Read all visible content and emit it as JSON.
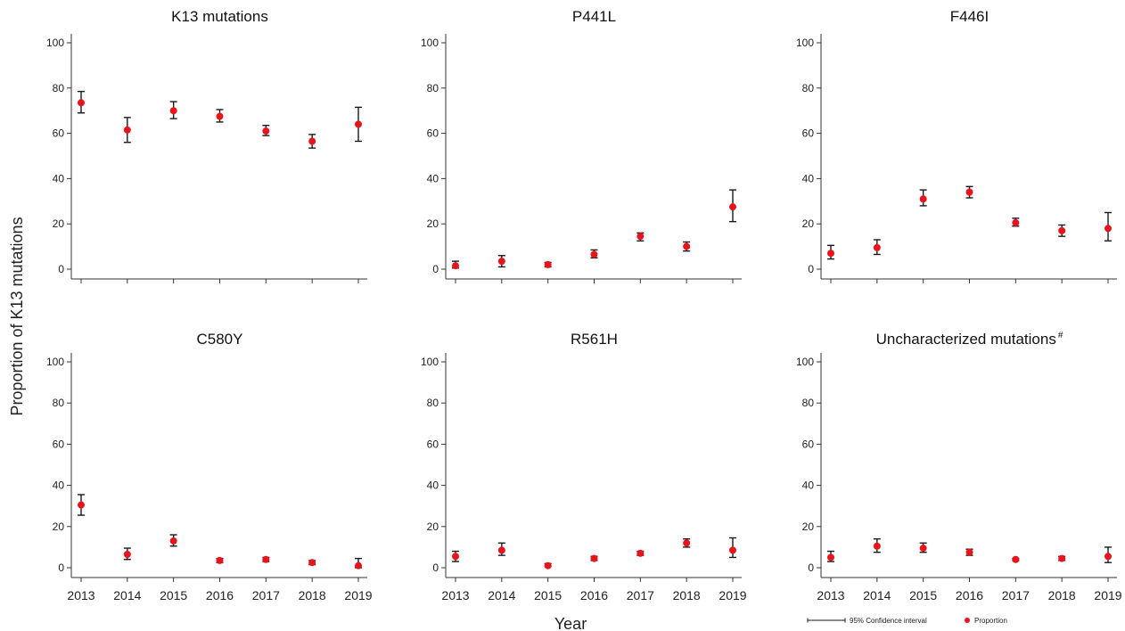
{
  "figure": {
    "ylabel": "Proportion of K13 mutations",
    "xlabel": "Year",
    "legend": {
      "ci_label": "95% Confidence interval",
      "point_label": "Proportion",
      "placement": "bottom-right"
    },
    "colors": {
      "point": "#e8141c",
      "errorbar": "#1a1a1a",
      "axis": "#333333"
    }
  },
  "chart_data": [
    {
      "type": "scatter",
      "title": "K13 mutations",
      "title_sup": "",
      "x": [
        "2013",
        "2014",
        "2015",
        "2016",
        "2017",
        "2018",
        "2019"
      ],
      "series": [
        {
          "values": [
            73.5,
            61.5,
            70.0,
            67.5,
            61.0,
            56.5,
            64.0
          ],
          "ci_low": [
            69.0,
            56.0,
            66.5,
            65.0,
            59.0,
            53.5,
            56.5
          ],
          "ci_high": [
            78.5,
            67.0,
            74.0,
            70.5,
            63.5,
            59.5,
            71.5
          ]
        }
      ],
      "ylim": [
        0,
        100
      ],
      "yticks": [
        0,
        20,
        40,
        60,
        80,
        100
      ]
    },
    {
      "type": "scatter",
      "title": "P441L",
      "title_sup": "",
      "x": [
        "2013",
        "2014",
        "2015",
        "2016",
        "2017",
        "2018",
        "2019"
      ],
      "series": [
        {
          "values": [
            1.5,
            3.5,
            2.0,
            6.5,
            14.5,
            10.0,
            27.5
          ],
          "ci_low": [
            0.5,
            1.0,
            1.0,
            5.0,
            12.5,
            8.0,
            21.0
          ],
          "ci_high": [
            3.5,
            6.0,
            3.0,
            8.5,
            16.0,
            12.0,
            35.0
          ]
        }
      ],
      "ylim": [
        0,
        100
      ],
      "yticks": [
        0,
        20,
        40,
        60,
        80,
        100
      ]
    },
    {
      "type": "scatter",
      "title": "F446I",
      "title_sup": "",
      "x": [
        "2013",
        "2014",
        "2015",
        "2016",
        "2017",
        "2018",
        "2019"
      ],
      "series": [
        {
          "values": [
            7.0,
            9.5,
            31.0,
            34.0,
            20.5,
            17.0,
            18.0
          ],
          "ci_low": [
            4.5,
            6.5,
            28.0,
            31.5,
            19.0,
            14.5,
            12.5
          ],
          "ci_high": [
            10.5,
            13.0,
            35.0,
            36.5,
            22.5,
            19.5,
            25.0
          ]
        }
      ],
      "ylim": [
        0,
        100
      ],
      "yticks": [
        0,
        20,
        40,
        60,
        80,
        100
      ]
    },
    {
      "type": "scatter",
      "title": "C580Y",
      "title_sup": "",
      "x": [
        "2013",
        "2014",
        "2015",
        "2016",
        "2017",
        "2018",
        "2019"
      ],
      "series": [
        {
          "values": [
            30.5,
            6.5,
            13.0,
            3.5,
            4.0,
            2.5,
            1.0
          ],
          "ci_low": [
            25.5,
            4.0,
            10.5,
            2.5,
            3.0,
            1.5,
            0.0
          ],
          "ci_high": [
            35.5,
            9.5,
            16.0,
            4.5,
            5.0,
            3.5,
            4.5
          ]
        }
      ],
      "ylim": [
        0,
        100
      ],
      "yticks": [
        0,
        20,
        40,
        60,
        80,
        100
      ]
    },
    {
      "type": "scatter",
      "title": "R561H",
      "title_sup": "",
      "x": [
        "2013",
        "2014",
        "2015",
        "2016",
        "2017",
        "2018",
        "2019"
      ],
      "series": [
        {
          "values": [
            5.5,
            8.5,
            1.0,
            4.5,
            7.0,
            12.0,
            8.5
          ],
          "ci_low": [
            3.0,
            6.0,
            0.5,
            3.5,
            6.0,
            10.0,
            5.0
          ],
          "ci_high": [
            8.0,
            12.0,
            2.0,
            5.5,
            8.0,
            14.0,
            14.5
          ]
        }
      ],
      "ylim": [
        0,
        100
      ],
      "yticks": [
        0,
        20,
        40,
        60,
        80,
        100
      ]
    },
    {
      "type": "scatter",
      "title": "Uncharacterized mutations",
      "title_sup": "#",
      "x": [
        "2013",
        "2014",
        "2015",
        "2016",
        "2017",
        "2018",
        "2019"
      ],
      "series": [
        {
          "values": [
            5.0,
            10.5,
            9.5,
            7.5,
            4.0,
            4.5,
            5.5
          ],
          "ci_low": [
            3.0,
            7.5,
            7.5,
            6.0,
            3.5,
            3.5,
            2.5
          ],
          "ci_high": [
            8.0,
            14.0,
            12.0,
            9.0,
            4.5,
            5.5,
            10.0
          ]
        }
      ],
      "ylim": [
        0,
        100
      ],
      "yticks": [
        0,
        20,
        40,
        60,
        80,
        100
      ]
    }
  ]
}
